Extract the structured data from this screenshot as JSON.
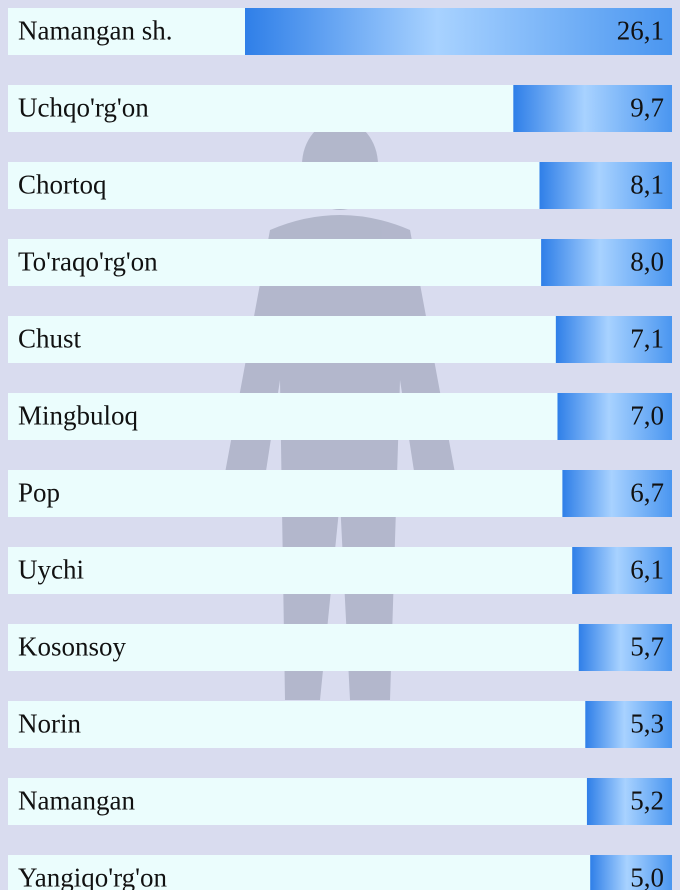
{
  "chart_data": {
    "type": "bar",
    "categories": [
      "Namangan sh.",
      "Uchqo'rg'on",
      "Chortoq",
      "To'raqo'rg'on",
      "Chust",
      "Mingbuloq",
      "Pop",
      "Uychi",
      "Kosonsoy",
      "Norin",
      "Namangan",
      "Yangiqo'rg'on"
    ],
    "values": [
      26.1,
      9.7,
      8.1,
      8.0,
      7.1,
      7.0,
      6.7,
      6.1,
      5.7,
      5.3,
      5.2,
      5.0
    ],
    "value_labels": [
      "26,1",
      "9,7",
      "8,1",
      "8,0",
      "7,1",
      "7,0",
      "6,7",
      "6,1",
      "5,7",
      "5,3",
      "5,2",
      "5,0"
    ],
    "color": "#4a96f0"
  }
}
